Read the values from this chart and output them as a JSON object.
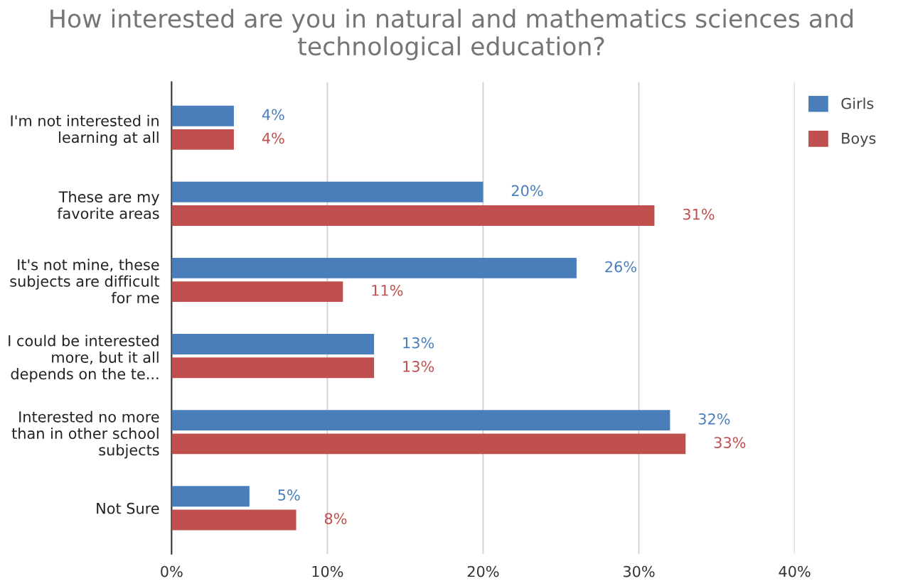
{
  "chart_data": {
    "type": "bar",
    "orientation": "horizontal",
    "title": "How interested are you in natural and mathematics sciences and\ntechnological education?",
    "categories": [
      "I'm not interested in\nlearning at all",
      "These are my\nfavorite areas",
      "It's not mine, these\nsubjects are difficult\nfor me",
      "I could be interested\nmore, but it all\ndepends on the te...",
      "Interested no more\nthan in other school\nsubjects",
      "Not Sure"
    ],
    "series": [
      {
        "name": "Girls",
        "color": "#4a7ebb",
        "values": [
          4,
          20,
          26,
          13,
          32,
          5
        ],
        "value_labels": [
          "4%",
          "20%",
          "26%",
          "13%",
          "32%",
          "5%"
        ]
      },
      {
        "name": "Boys",
        "color": "#c0504d",
        "values": [
          4,
          31,
          11,
          13,
          33,
          8
        ],
        "value_labels": [
          "4%",
          "31%",
          "11%",
          "13%",
          "33%",
          "8%"
        ]
      }
    ],
    "xlim": [
      0,
      40
    ],
    "xticks": [
      {
        "value": 0,
        "label": "0%"
      },
      {
        "value": 10,
        "label": "10%"
      },
      {
        "value": 20,
        "label": "20%"
      },
      {
        "value": 30,
        "label": "30%"
      },
      {
        "value": 40,
        "label": "40%"
      }
    ],
    "grid": "x",
    "legend": "top right"
  }
}
